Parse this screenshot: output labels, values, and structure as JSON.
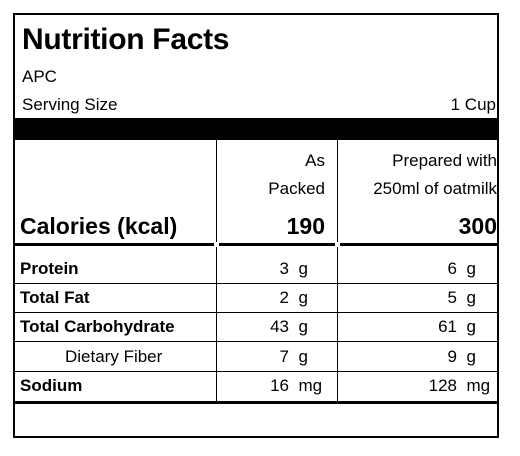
{
  "title": "Nutrition Facts",
  "brand": "APC",
  "serving": {
    "label": "Serving Size",
    "value": "1 Cup"
  },
  "columns": {
    "col1": {
      "line1": "As",
      "line2": "Packed"
    },
    "col2": {
      "line1": "Prepared with",
      "line2": "250ml of oatmilk"
    }
  },
  "calories": {
    "label": "Calories (kcal)",
    "col1": "190",
    "col2": "300"
  },
  "nutrients": [
    {
      "label": "Protein",
      "bold": true,
      "col1": "3",
      "col1_unit": "g",
      "col2": "6",
      "col2_unit": "g"
    },
    {
      "label": "Total Fat",
      "bold": true,
      "col1": "2",
      "col1_unit": "g",
      "col2": "5",
      "col2_unit": "g"
    },
    {
      "label": "Total Carbohydrate",
      "bold": true,
      "col1": "43",
      "col1_unit": "g",
      "col2": "61",
      "col2_unit": "g"
    },
    {
      "label": "Dietary Fiber",
      "bold": false,
      "col1": "7",
      "col1_unit": "g",
      "col2": "9",
      "col2_unit": "g"
    },
    {
      "label": "Sodium",
      "bold": true,
      "col1": "16",
      "col1_unit": "mg",
      "col2": "128",
      "col2_unit": "mg"
    }
  ]
}
